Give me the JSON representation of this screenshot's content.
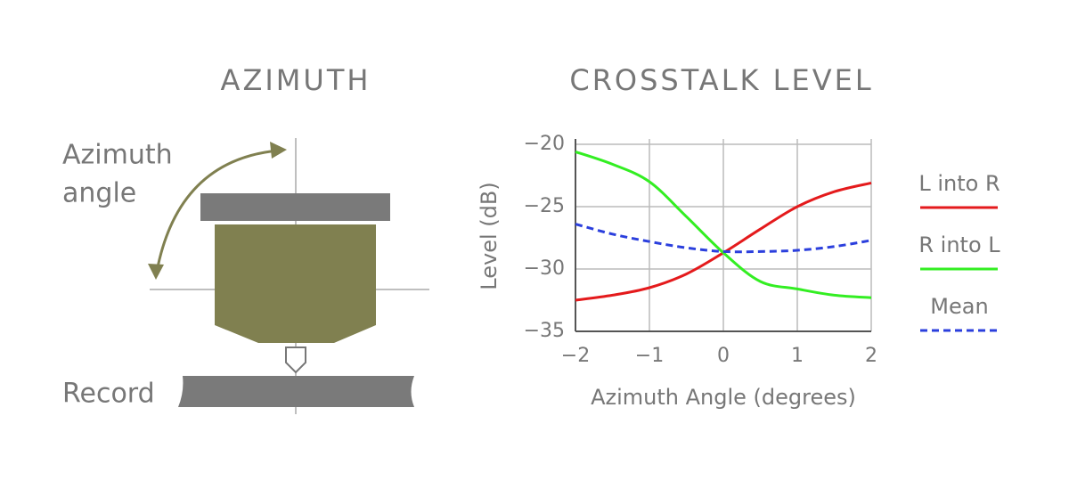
{
  "diagram": {
    "title": "AZIMUTH",
    "angle_label": [
      "Azimuth",
      "angle"
    ],
    "record_label": "Record"
  },
  "chart_data": {
    "type": "line",
    "title": "CROSSTALK LEVEL",
    "x_label": "Azimuth Angle (degrees)",
    "y_label": "Level (dB)",
    "x": [
      -2,
      -1.5,
      -1,
      -0.5,
      0,
      0.5,
      1,
      1.5,
      2
    ],
    "series": [
      {
        "name": "L into R",
        "color": "#e41a1c",
        "dashed": false,
        "values": [
          -32.5,
          -32.1,
          -31.5,
          -30.4,
          -28.7,
          -26.8,
          -25,
          -23.8,
          -23.1
        ]
      },
      {
        "name": "R into L",
        "color": "#33ee22",
        "dashed": false,
        "values": [
          -20.6,
          -21.6,
          -23,
          -25.8,
          -28.7,
          -31,
          -31.6,
          -32.1,
          -32.3
        ]
      },
      {
        "name": "Mean",
        "color": "#2b3fdd",
        "dashed": true,
        "values": [
          -26.4,
          -27.2,
          -27.8,
          -28.3,
          -28.6,
          -28.6,
          -28.5,
          -28.2,
          -27.7
        ]
      }
    ],
    "xlim": [
      -2,
      2
    ],
    "ylim": [
      -35,
      -20
    ],
    "xticks": [
      {
        "value": -2,
        "label": "−2"
      },
      {
        "value": -1,
        "label": "−1"
      },
      0,
      1,
      2
    ],
    "yticks": [
      {
        "value": -20,
        "label": "−20"
      },
      {
        "value": -25,
        "label": "−25"
      },
      {
        "value": -30,
        "label": "−30"
      },
      {
        "value": -35,
        "label": "−35"
      }
    ],
    "grid": true
  }
}
